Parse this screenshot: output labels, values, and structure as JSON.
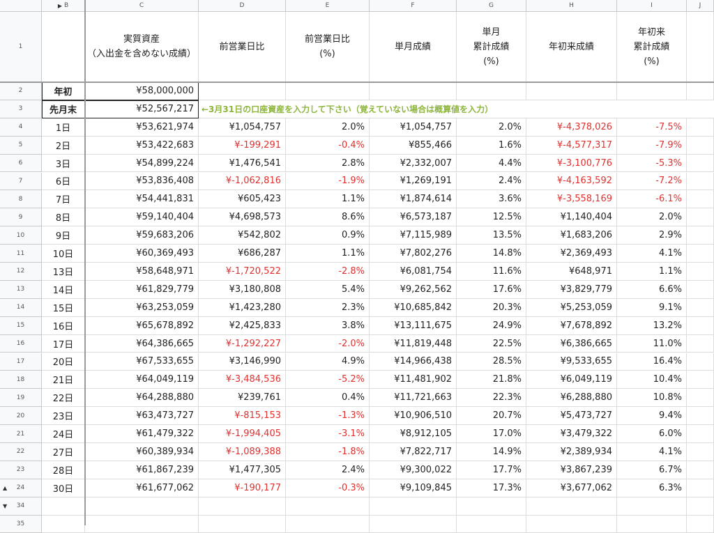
{
  "columns": [
    {
      "letter": "B",
      "header": "",
      "collapse_marker": "▶"
    },
    {
      "letter": "C",
      "header": "実質資産\n（入出金を含めない成績）"
    },
    {
      "letter": "D",
      "header": "前営業日比"
    },
    {
      "letter": "E",
      "header": "前営業日比\n(%)"
    },
    {
      "letter": "F",
      "header": "単月成績"
    },
    {
      "letter": "G",
      "header": "単月\n累計成績\n(%)"
    },
    {
      "letter": "H",
      "header": "年初来成績"
    },
    {
      "letter": "I",
      "header": "年初来\n累計成績\n(%)"
    },
    {
      "letter": "J",
      "header": ""
    }
  ],
  "header_row_number": "1",
  "special_rows": [
    {
      "row": "2",
      "label": "年初",
      "c": "¥58,000,000"
    },
    {
      "row": "3",
      "label": "先月末",
      "c": "¥52,567,217",
      "note": "←3月31日の口座資産を入力して下さい（覚えていない場合は概算値を入力）"
    }
  ],
  "rows": [
    {
      "row": "4",
      "b": "1日",
      "c": "¥53,621,974",
      "d": "¥1,054,757",
      "e": "2.0%",
      "f": "¥1,054,757",
      "g": "2.0%",
      "h": "¥-4,378,026",
      "i": "-7.5%"
    },
    {
      "row": "5",
      "b": "2日",
      "c": "¥53,422,683",
      "d": "¥-199,291",
      "e": "-0.4%",
      "f": "¥855,466",
      "g": "1.6%",
      "h": "¥-4,577,317",
      "i": "-7.9%"
    },
    {
      "row": "6",
      "b": "3日",
      "c": "¥54,899,224",
      "d": "¥1,476,541",
      "e": "2.8%",
      "f": "¥2,332,007",
      "g": "4.4%",
      "h": "¥-3,100,776",
      "i": "-5.3%"
    },
    {
      "row": "7",
      "b": "6日",
      "c": "¥53,836,408",
      "d": "¥-1,062,816",
      "e": "-1.9%",
      "f": "¥1,269,191",
      "g": "2.4%",
      "h": "¥-4,163,592",
      "i": "-7.2%"
    },
    {
      "row": "8",
      "b": "7日",
      "c": "¥54,441,831",
      "d": "¥605,423",
      "e": "1.1%",
      "f": "¥1,874,614",
      "g": "3.6%",
      "h": "¥-3,558,169",
      "i": "-6.1%"
    },
    {
      "row": "9",
      "b": "8日",
      "c": "¥59,140,404",
      "d": "¥4,698,573",
      "e": "8.6%",
      "f": "¥6,573,187",
      "g": "12.5%",
      "h": "¥1,140,404",
      "i": "2.0%"
    },
    {
      "row": "10",
      "b": "9日",
      "c": "¥59,683,206",
      "d": "¥542,802",
      "e": "0.9%",
      "f": "¥7,115,989",
      "g": "13.5%",
      "h": "¥1,683,206",
      "i": "2.9%"
    },
    {
      "row": "11",
      "b": "10日",
      "c": "¥60,369,493",
      "d": "¥686,287",
      "e": "1.1%",
      "f": "¥7,802,276",
      "g": "14.8%",
      "h": "¥2,369,493",
      "i": "4.1%"
    },
    {
      "row": "12",
      "b": "13日",
      "c": "¥58,648,971",
      "d": "¥-1,720,522",
      "e": "-2.8%",
      "f": "¥6,081,754",
      "g": "11.6%",
      "h": "¥648,971",
      "i": "1.1%"
    },
    {
      "row": "13",
      "b": "14日",
      "c": "¥61,829,779",
      "d": "¥3,180,808",
      "e": "5.4%",
      "f": "¥9,262,562",
      "g": "17.6%",
      "h": "¥3,829,779",
      "i": "6.6%"
    },
    {
      "row": "14",
      "b": "15日",
      "c": "¥63,253,059",
      "d": "¥1,423,280",
      "e": "2.3%",
      "f": "¥10,685,842",
      "g": "20.3%",
      "h": "¥5,253,059",
      "i": "9.1%"
    },
    {
      "row": "15",
      "b": "16日",
      "c": "¥65,678,892",
      "d": "¥2,425,833",
      "e": "3.8%",
      "f": "¥13,111,675",
      "g": "24.9%",
      "h": "¥7,678,892",
      "i": "13.2%"
    },
    {
      "row": "16",
      "b": "17日",
      "c": "¥64,386,665",
      "d": "¥-1,292,227",
      "e": "-2.0%",
      "f": "¥11,819,448",
      "g": "22.5%",
      "h": "¥6,386,665",
      "i": "11.0%"
    },
    {
      "row": "17",
      "b": "20日",
      "c": "¥67,533,655",
      "d": "¥3,146,990",
      "e": "4.9%",
      "f": "¥14,966,438",
      "g": "28.5%",
      "h": "¥9,533,655",
      "i": "16.4%"
    },
    {
      "row": "18",
      "b": "21日",
      "c": "¥64,049,119",
      "d": "¥-3,484,536",
      "e": "-5.2%",
      "f": "¥11,481,902",
      "g": "21.8%",
      "h": "¥6,049,119",
      "i": "10.4%"
    },
    {
      "row": "19",
      "b": "22日",
      "c": "¥64,288,880",
      "d": "¥239,761",
      "e": "0.4%",
      "f": "¥11,721,663",
      "g": "22.3%",
      "h": "¥6,288,880",
      "i": "10.8%"
    },
    {
      "row": "20",
      "b": "23日",
      "c": "¥63,473,727",
      "d": "¥-815,153",
      "e": "-1.3%",
      "f": "¥10,906,510",
      "g": "20.7%",
      "h": "¥5,473,727",
      "i": "9.4%"
    },
    {
      "row": "21",
      "b": "24日",
      "c": "¥61,479,322",
      "d": "¥-1,994,405",
      "e": "-3.1%",
      "f": "¥8,912,105",
      "g": "17.0%",
      "h": "¥3,479,322",
      "i": "6.0%"
    },
    {
      "row": "22",
      "b": "27日",
      "c": "¥60,389,934",
      "d": "¥-1,089,388",
      "e": "-1.8%",
      "f": "¥7,822,717",
      "g": "14.9%",
      "h": "¥2,389,934",
      "i": "4.1%"
    },
    {
      "row": "23",
      "b": "28日",
      "c": "¥61,867,239",
      "d": "¥1,477,305",
      "e": "2.4%",
      "f": "¥9,300,022",
      "g": "17.7%",
      "h": "¥3,867,239",
      "i": "6.7%"
    },
    {
      "row": "24",
      "b": "30日",
      "c": "¥61,677,062",
      "d": "¥-190,177",
      "e": "-0.3%",
      "f": "¥9,109,845",
      "g": "17.3%",
      "h": "¥3,677,062",
      "i": "6.3%",
      "group_marker": "▲"
    }
  ],
  "trailing_rows": [
    {
      "row": "34",
      "group_marker": "▼"
    },
    {
      "row": "35"
    }
  ],
  "colors": {
    "negative": "#e0312f",
    "note": "#8cb53a",
    "header_bg": "#f8f9fa"
  }
}
